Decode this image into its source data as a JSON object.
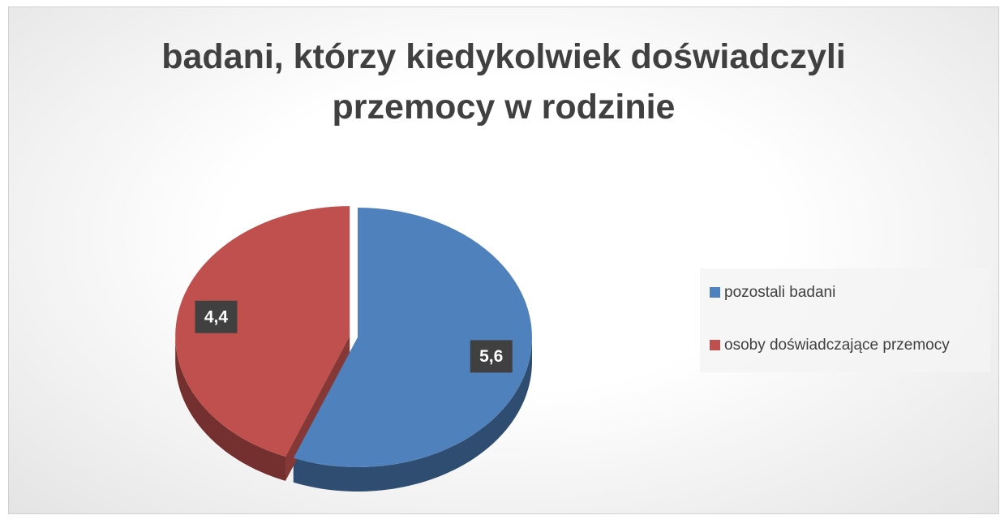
{
  "chart_data": {
    "type": "pie",
    "title": "badani, którzy kiedykolwiek doświadczyli przemocy w rodzinie",
    "categories": [
      "pozostali badani",
      "osoby doświadczające przemocy"
    ],
    "values": [
      5.6,
      4.4
    ],
    "value_labels": [
      "5,6",
      "4,4"
    ],
    "colors": [
      "#4f81bd",
      "#c0504d"
    ],
    "legend": "right"
  }
}
